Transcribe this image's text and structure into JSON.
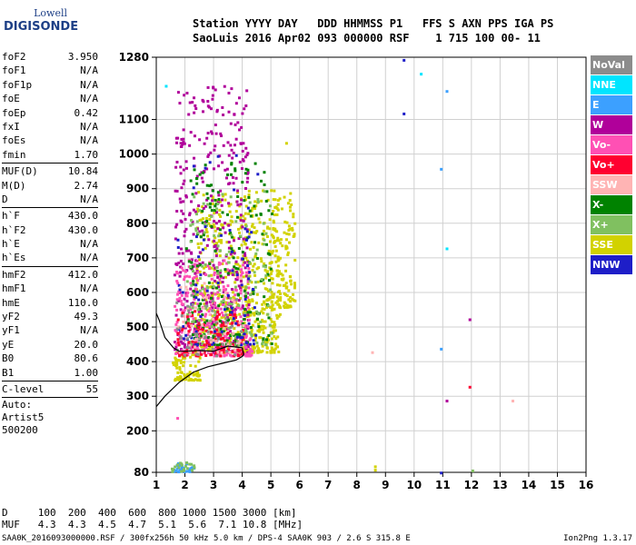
{
  "logo": {
    "top": "Lowell",
    "bottom": "DIGISONDE"
  },
  "header": {
    "line1": "Station YYYY DAY   DDD HHMMSS P1   FFS S AXN PPS IGA PS",
    "line2": "SaoLuis 2016 Apr02 093 000000 RSF    1 715 100 00- 11"
  },
  "params": [
    {
      "label": "foF2",
      "value": "3.950"
    },
    {
      "label": "foF1",
      "value": "N/A"
    },
    {
      "label": "foF1p",
      "value": "N/A"
    },
    {
      "label": "foE",
      "value": "N/A"
    },
    {
      "label": "foEp",
      "value": "0.42"
    },
    {
      "label": "fxI",
      "value": "N/A"
    },
    {
      "label": "foEs",
      "value": "N/A"
    },
    {
      "label": "fmin",
      "value": "1.70"
    },
    {
      "sep": true
    },
    {
      "label": "MUF(D)",
      "value": "10.84"
    },
    {
      "label": "M(D)",
      "value": "2.74"
    },
    {
      "label": "D",
      "value": "N/A"
    },
    {
      "sep": true
    },
    {
      "label": "h`F",
      "value": "430.0"
    },
    {
      "label": "h`F2",
      "value": "430.0"
    },
    {
      "label": "h`E",
      "value": "N/A"
    },
    {
      "label": "h`Es",
      "value": "N/A"
    },
    {
      "sep": true
    },
    {
      "label": "hmF2",
      "value": "412.0"
    },
    {
      "label": "hmF1",
      "value": "N/A"
    },
    {
      "label": "hmE",
      "value": "110.0"
    },
    {
      "label": "yF2",
      "value": "49.3"
    },
    {
      "label": "yF1",
      "value": "N/A"
    },
    {
      "label": "yE",
      "value": "20.0"
    },
    {
      "label": "B0",
      "value": "80.6"
    },
    {
      "label": "B1",
      "value": "1.00"
    },
    {
      "sep": true
    },
    {
      "label": "C-level",
      "value": "55"
    },
    {
      "sep": true
    },
    {
      "text": "Auto:"
    },
    {
      "text": "Artist5"
    },
    {
      "text": "500200"
    }
  ],
  "legend": [
    {
      "label": "NoVal",
      "color": "#8c8c8c"
    },
    {
      "label": "NNE",
      "color": "#00e5ff"
    },
    {
      "label": "E",
      "color": "#3ca0ff"
    },
    {
      "label": "W",
      "color": "#b0009a"
    },
    {
      "label": "Vo-",
      "color": "#ff50b4"
    },
    {
      "label": "Vo+",
      "color": "#ff0030"
    },
    {
      "label": "SSW",
      "color": "#ffb4b4"
    },
    {
      "label": "X-",
      "color": "#008200"
    },
    {
      "label": "X+",
      "color": "#80c060"
    },
    {
      "label": "SSE",
      "color": "#d2d200"
    },
    {
      "label": "NNW",
      "color": "#1e1ec8"
    }
  ],
  "dmuf": {
    "line1": "D     100  200  400  600  800 1000 1500 3000 [km]",
    "line2": "MUF   4.3  4.3  4.5  4.7  5.1  5.6  7.1 10.8 [MHz]"
  },
  "footer": {
    "left": "SAA0K_2016093000000.RSF / 300fx256h 50 kHz 5.0 km / DPS-4 SAA0K 903 / 2.6 S 315.8 E",
    "right": "Ion2Png 1.3.17"
  },
  "chart_data": {
    "type": "scatter",
    "xlabel": "",
    "ylabel": "",
    "xlim": [
      1,
      16
    ],
    "ylim": [
      80,
      1280
    ],
    "xticks": [
      1,
      2,
      3,
      4,
      5,
      6,
      7,
      8,
      9,
      10,
      11,
      12,
      13,
      14,
      15,
      16
    ],
    "yticks": [
      80,
      200,
      300,
      400,
      500,
      600,
      700,
      800,
      900,
      1000,
      1100,
      1280
    ],
    "grid": true,
    "clusters": [
      {
        "name": "SSE",
        "color": "#d2d200",
        "xr": [
          2.3,
          5.3
        ],
        "yr": [
          430,
          900
        ],
        "n": 600
      },
      {
        "name": "SSE",
        "color": "#d2d200",
        "xr": [
          4.8,
          5.8
        ],
        "yr": [
          560,
          900
        ],
        "n": 140
      },
      {
        "name": "SSE",
        "color": "#d2d200",
        "xr": [
          1.5,
          2.5
        ],
        "yr": [
          350,
          430
        ],
        "n": 80
      },
      {
        "name": "W",
        "color": "#b0009a",
        "xr": [
          1.6,
          4.2
        ],
        "yr": [
          430,
          1200
        ],
        "n": 450
      },
      {
        "name": "Vo-",
        "color": "#ff50b4",
        "xr": [
          1.6,
          4.3
        ],
        "yr": [
          420,
          700
        ],
        "n": 300
      },
      {
        "name": "X-",
        "color": "#008200",
        "xr": [
          2.0,
          5.0
        ],
        "yr": [
          450,
          980
        ],
        "n": 200
      },
      {
        "name": "X+",
        "color": "#80c060",
        "xr": [
          2.0,
          5.0
        ],
        "yr": [
          450,
          900
        ],
        "n": 150
      },
      {
        "name": "Vo+",
        "color": "#ff0030",
        "xr": [
          1.7,
          4.0
        ],
        "yr": [
          420,
          550
        ],
        "n": 120
      },
      {
        "name": "NNW",
        "color": "#1e1ec8",
        "xr": [
          1.7,
          4.5
        ],
        "yr": [
          450,
          1000
        ],
        "n": 80
      },
      {
        "name": "SSW",
        "color": "#ffb4b4",
        "xr": [
          1.7,
          4.0
        ],
        "yr": [
          430,
          650
        ],
        "n": 60
      },
      {
        "name": "NoVal",
        "color": "#8c8c8c",
        "xr": [
          1.6,
          4.0
        ],
        "yr": [
          420,
          600
        ],
        "n": 40
      },
      {
        "name": "E",
        "color": "#3ca0ff",
        "xr": [
          1.5,
          2.3
        ],
        "yr": [
          85,
          110
        ],
        "n": 30
      },
      {
        "name": "X+",
        "color": "#80c060",
        "xr": [
          1.5,
          2.3
        ],
        "yr": [
          85,
          115
        ],
        "n": 20
      }
    ],
    "points": [
      {
        "x": 9.6,
        "y": 1275,
        "c": "#1e1ec8"
      },
      {
        "x": 9.6,
        "y": 1120,
        "c": "#1e1ec8"
      },
      {
        "x": 10.2,
        "y": 1235,
        "c": "#00e5ff"
      },
      {
        "x": 11.1,
        "y": 1185,
        "c": "#3ca0ff"
      },
      {
        "x": 1.3,
        "y": 1200,
        "c": "#00e5ff"
      },
      {
        "x": 10.9,
        "y": 960,
        "c": "#3ca0ff"
      },
      {
        "x": 11.1,
        "y": 730,
        "c": "#00e5ff"
      },
      {
        "x": 11.9,
        "y": 525,
        "c": "#b0009a"
      },
      {
        "x": 10.9,
        "y": 440,
        "c": "#3ca0ff"
      },
      {
        "x": 11.1,
        "y": 290,
        "c": "#b0009a"
      },
      {
        "x": 11.9,
        "y": 330,
        "c": "#ff0030"
      },
      {
        "x": 13.4,
        "y": 290,
        "c": "#ffb4b4"
      },
      {
        "x": 8.5,
        "y": 430,
        "c": "#ffb4b4"
      },
      {
        "x": 8.6,
        "y": 90,
        "c": "#d2d200"
      },
      {
        "x": 8.6,
        "y": 100,
        "c": "#d2d200"
      },
      {
        "x": 10.9,
        "y": 82,
        "c": "#1e1ec8"
      },
      {
        "x": 12.0,
        "y": 88,
        "c": "#80c060"
      },
      {
        "x": 1.7,
        "y": 240,
        "c": "#ff50b4"
      },
      {
        "x": 5.5,
        "y": 1035,
        "c": "#d2d200"
      }
    ],
    "trace_lines": [
      [
        [
          1.0,
          270
        ],
        [
          1.3,
          300
        ],
        [
          1.8,
          340
        ],
        [
          2.3,
          370
        ],
        [
          2.8,
          385
        ],
        [
          3.3,
          395
        ],
        [
          3.8,
          405
        ],
        [
          4.0,
          415
        ],
        [
          4.05,
          420
        ],
        [
          4.0,
          440
        ],
        [
          3.5,
          445
        ],
        [
          3.0,
          430
        ],
        [
          2.5,
          432
        ],
        [
          2.0,
          430
        ],
        [
          1.8,
          430
        ],
        [
          1.6,
          440
        ],
        [
          1.3,
          470
        ],
        [
          1.1,
          520
        ],
        [
          1.0,
          540
        ]
      ]
    ]
  }
}
